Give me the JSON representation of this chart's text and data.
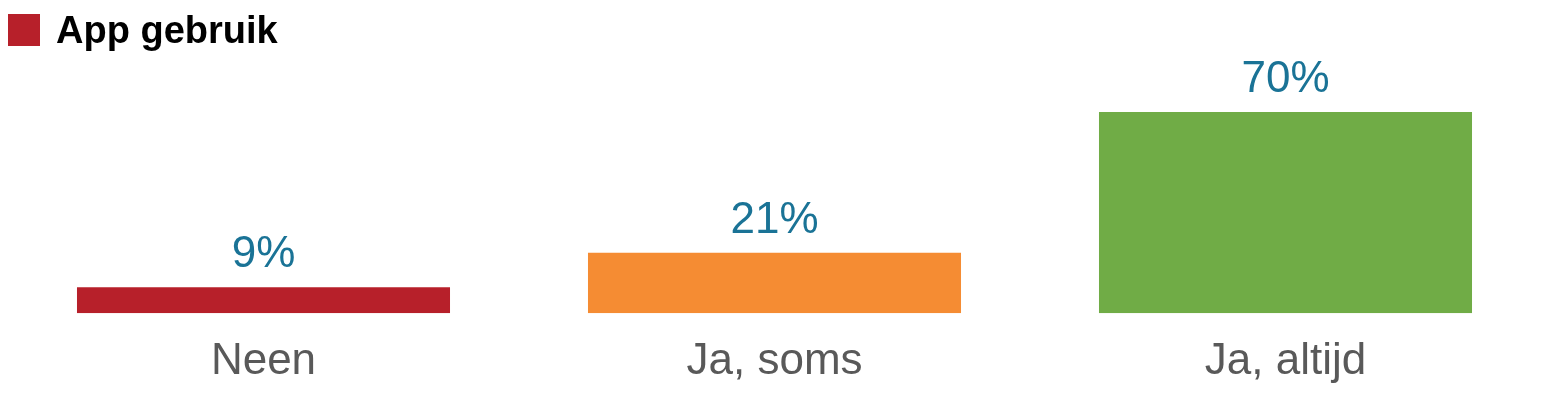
{
  "chart_data": {
    "type": "bar",
    "title": "App gebruik",
    "categories": [
      "Neen",
      "Ja, soms",
      "Ja, altijd"
    ],
    "values": [
      9,
      21,
      70
    ],
    "colors": [
      "#b7202a",
      "#f58c33",
      "#70ac46"
    ],
    "value_labels": [
      "9%",
      "21%",
      "70%"
    ],
    "grid": false,
    "legend": false
  }
}
